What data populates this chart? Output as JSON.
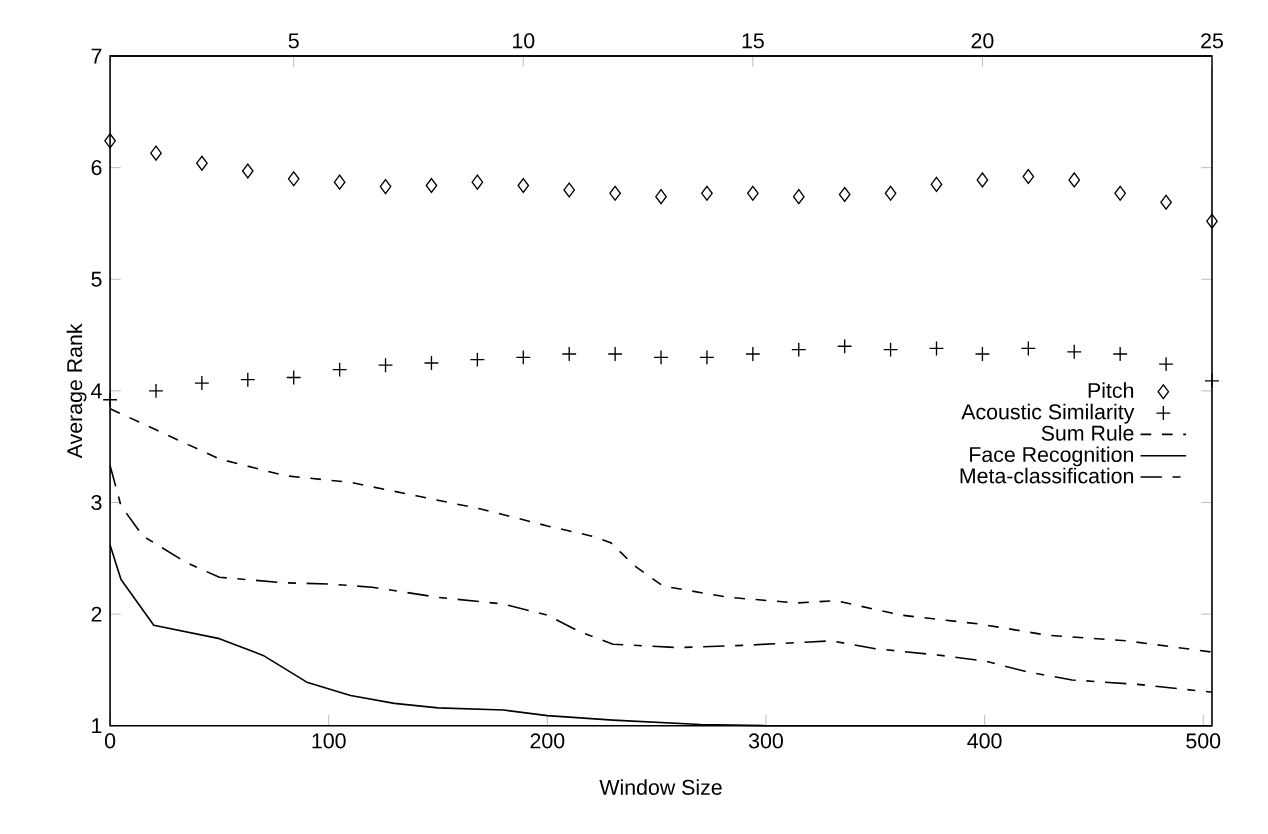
{
  "chart_data": {
    "type": "line",
    "xlabel": "Window Size",
    "ylabel": "Average Rank",
    "xlim": [
      0,
      504
    ],
    "xticks": [
      0,
      100,
      200,
      300,
      400,
      500
    ],
    "ylim": [
      1,
      7
    ],
    "yticks": [
      1,
      2,
      3,
      4,
      5,
      6,
      7
    ],
    "x2lim": [
      1,
      25
    ],
    "x2ticks": [
      5,
      10,
      15,
      20,
      25
    ],
    "legend": "right",
    "grid": false,
    "series": [
      {
        "name": "Pitch",
        "type": "scatter",
        "marker": "diamond",
        "color": "#000000",
        "x": [
          0,
          21,
          42,
          63,
          84,
          105,
          126,
          147,
          168,
          189,
          210,
          231,
          252,
          273,
          294,
          315,
          336,
          357,
          378,
          399,
          420,
          441,
          462,
          483,
          504
        ],
        "values": [
          6.24,
          6.13,
          6.04,
          5.97,
          5.9,
          5.87,
          5.83,
          5.84,
          5.87,
          5.84,
          5.8,
          5.77,
          5.74,
          5.77,
          5.77,
          5.74,
          5.76,
          5.77,
          5.85,
          5.89,
          5.92,
          5.89,
          5.77,
          5.69,
          5.52
        ]
      },
      {
        "name": "Acoustic Similarity",
        "type": "scatter",
        "marker": "cross",
        "color": "#000000",
        "x": [
          0,
          21,
          42,
          63,
          84,
          105,
          126,
          147,
          168,
          189,
          210,
          231,
          252,
          273,
          294,
          315,
          336,
          357,
          378,
          399,
          420,
          441,
          462,
          483,
          504
        ],
        "values": [
          3.92,
          4.0,
          4.07,
          4.1,
          4.12,
          4.19,
          4.23,
          4.25,
          4.28,
          4.3,
          4.33,
          4.33,
          4.3,
          4.3,
          4.33,
          4.37,
          4.4,
          4.37,
          4.38,
          4.33,
          4.38,
          4.35,
          4.33,
          4.24,
          4.09
        ]
      },
      {
        "name": "Sum Rule",
        "line_style": "dashed",
        "color": "#000000",
        "x": [
          0,
          20,
          50,
          80,
          110,
          140,
          170,
          200,
          220,
          229,
          240,
          253,
          283,
          314,
          332,
          362,
          398,
          429,
          465,
          504
        ],
        "values": [
          3.84,
          3.66,
          3.39,
          3.24,
          3.18,
          3.06,
          2.94,
          2.79,
          2.7,
          2.64,
          2.43,
          2.25,
          2.15,
          2.1,
          2.12,
          1.99,
          1.91,
          1.81,
          1.76,
          1.66
        ]
      },
      {
        "name": "Face Recognition",
        "line_style": "solid",
        "color": "#000000",
        "x": [
          0,
          5,
          20,
          50,
          70,
          90,
          110,
          130,
          150,
          180,
          200,
          230,
          270,
          300,
          504
        ],
        "values": [
          2.62,
          2.31,
          1.9,
          1.78,
          1.63,
          1.39,
          1.27,
          1.2,
          1.16,
          1.14,
          1.09,
          1.05,
          1.01,
          1.0,
          1.0
        ]
      },
      {
        "name": "Meta-classification",
        "line_style": "dashed",
        "color": "#000000",
        "x": [
          0,
          5,
          15,
          35,
          50,
          80,
          100,
          120,
          150,
          180,
          200,
          215,
          230,
          260,
          290,
          320,
          330,
          350,
          380,
          400,
          420,
          440,
          470,
          504
        ],
        "values": [
          3.33,
          2.97,
          2.7,
          2.46,
          2.33,
          2.28,
          2.27,
          2.24,
          2.15,
          2.09,
          1.99,
          1.84,
          1.73,
          1.7,
          1.72,
          1.75,
          1.76,
          1.69,
          1.63,
          1.58,
          1.48,
          1.41,
          1.37,
          1.3
        ]
      }
    ]
  }
}
